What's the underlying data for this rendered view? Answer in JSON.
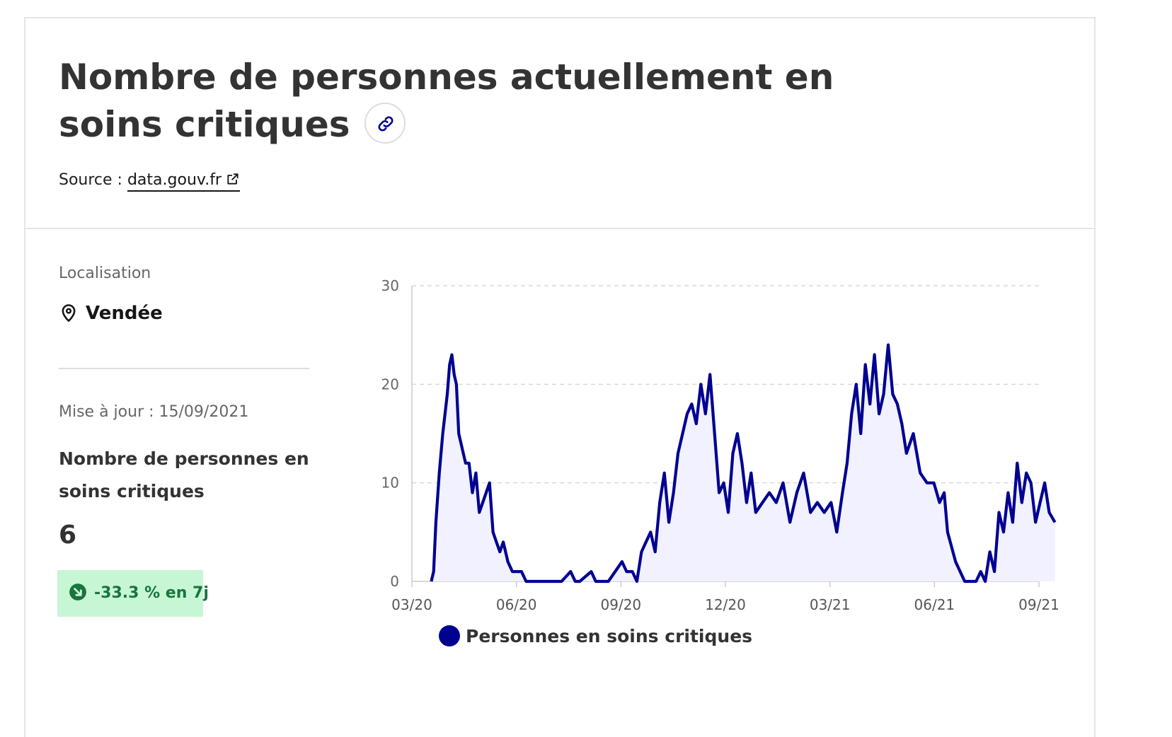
{
  "header": {
    "title": "Nombre de personnes actuellement en soins critiques",
    "source_label": "Source :",
    "source_link": "data.gouv.fr"
  },
  "location": {
    "label": "Localisation",
    "value": "Vendée"
  },
  "metric": {
    "updated": "Mise à jour : 15/09/2021",
    "label": "Nombre de personnes en soins critiques",
    "value": "6",
    "change": "-33.3 % en 7j"
  },
  "icons": {
    "link": "link-icon",
    "external": "external-link-icon",
    "pin": "map-pin-icon",
    "trend": "arrow-down-right-icon"
  },
  "colors": {
    "series": "#000091",
    "fill": "#f0f0ff",
    "badge_bg": "#c7f6d4",
    "badge_text": "#18753c"
  },
  "chart_data": {
    "type": "area",
    "xlabel": "",
    "ylabel": "",
    "ylim": [
      0,
      30
    ],
    "yticks": [
      0,
      10,
      20,
      30
    ],
    "xticks": [
      "03/20",
      "06/20",
      "09/20",
      "12/20",
      "03/21",
      "06/21",
      "09/21"
    ],
    "grid": true,
    "legend_position": "bottom",
    "series": [
      {
        "name": "Personnes en soins critiques",
        "x": [
          "2020-03-18",
          "2020-03-20",
          "2020-03-22",
          "2020-03-25",
          "2020-03-28",
          "2020-04-01",
          "2020-04-03",
          "2020-04-05",
          "2020-04-07",
          "2020-04-09",
          "2020-04-11",
          "2020-04-13",
          "2020-04-15",
          "2020-04-17",
          "2020-04-20",
          "2020-04-23",
          "2020-04-26",
          "2020-04-29",
          "2020-05-02",
          "2020-05-05",
          "2020-05-08",
          "2020-05-11",
          "2020-05-14",
          "2020-05-17",
          "2020-05-20",
          "2020-05-24",
          "2020-05-28",
          "2020-06-01",
          "2020-06-05",
          "2020-06-09",
          "2020-06-13",
          "2020-06-17",
          "2020-06-22",
          "2020-07-01",
          "2020-07-10",
          "2020-07-18",
          "2020-07-22",
          "2020-07-26",
          "2020-08-05",
          "2020-08-09",
          "2020-08-13",
          "2020-08-20",
          "2020-09-01",
          "2020-09-05",
          "2020-09-10",
          "2020-09-14",
          "2020-09-18",
          "2020-09-22",
          "2020-09-26",
          "2020-09-30",
          "2020-10-04",
          "2020-10-08",
          "2020-10-12",
          "2020-10-16",
          "2020-10-20",
          "2020-10-24",
          "2020-10-28",
          "2020-11-01",
          "2020-11-05",
          "2020-11-09",
          "2020-11-13",
          "2020-11-17",
          "2020-11-21",
          "2020-11-25",
          "2020-11-29",
          "2020-12-03",
          "2020-12-07",
          "2020-12-11",
          "2020-12-15",
          "2020-12-19",
          "2020-12-23",
          "2020-12-27",
          "2021-01-02",
          "2021-01-08",
          "2021-01-14",
          "2021-01-20",
          "2021-01-26",
          "2021-02-01",
          "2021-02-07",
          "2021-02-13",
          "2021-02-19",
          "2021-02-25",
          "2021-03-03",
          "2021-03-08",
          "2021-03-13",
          "2021-03-17",
          "2021-03-21",
          "2021-03-25",
          "2021-03-29",
          "2021-04-02",
          "2021-04-06",
          "2021-04-10",
          "2021-04-14",
          "2021-04-18",
          "2021-04-22",
          "2021-04-26",
          "2021-04-30",
          "2021-05-04",
          "2021-05-08",
          "2021-05-14",
          "2021-05-20",
          "2021-05-26",
          "2021-06-01",
          "2021-06-06",
          "2021-06-10",
          "2021-06-13",
          "2021-06-20",
          "2021-06-28",
          "2021-07-03",
          "2021-07-08",
          "2021-07-12",
          "2021-07-16",
          "2021-07-20",
          "2021-07-24",
          "2021-07-28",
          "2021-08-01",
          "2021-08-05",
          "2021-08-09",
          "2021-08-13",
          "2021-08-17",
          "2021-08-21",
          "2021-08-25",
          "2021-08-29",
          "2021-09-02",
          "2021-09-06",
          "2021-09-10",
          "2021-09-15"
        ],
        "values": [
          0,
          1,
          6,
          11,
          15,
          19,
          22,
          23,
          21,
          20,
          15,
          14,
          13,
          12,
          12,
          9,
          11,
          7,
          8,
          9,
          10,
          5,
          4,
          3,
          4,
          2,
          1,
          1,
          1,
          0,
          0,
          0,
          0,
          0,
          0,
          1,
          0,
          0,
          1,
          0,
          0,
          0,
          2,
          1,
          1,
          0,
          3,
          4,
          5,
          3,
          8,
          11,
          6,
          9,
          13,
          15,
          17,
          18,
          16,
          20,
          17,
          21,
          15,
          9,
          10,
          7,
          13,
          15,
          12,
          8,
          11,
          7,
          8,
          9,
          8,
          10,
          6,
          9,
          11,
          7,
          8,
          7,
          8,
          5,
          9,
          12,
          17,
          20,
          15,
          22,
          18,
          23,
          17,
          19,
          24,
          19,
          18,
          16,
          13,
          15,
          11,
          10,
          10,
          8,
          9,
          5,
          2,
          0,
          0,
          0,
          1,
          0,
          3,
          1,
          7,
          5,
          9,
          6,
          12,
          8,
          11,
          10,
          6,
          8,
          10,
          7,
          6
        ]
      }
    ]
  }
}
